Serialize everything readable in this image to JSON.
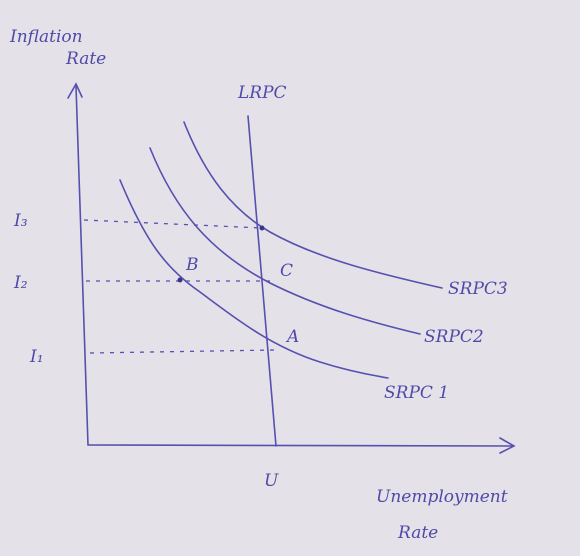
{
  "axes": {
    "y_label": [
      "Inflation",
      "Rate"
    ],
    "x_label": [
      "Unemployment",
      "Rate"
    ]
  },
  "lrpc": "LRPC",
  "levels": [
    "I₃",
    "I₂",
    "I₁"
  ],
  "natural_rate": "U",
  "points": [
    "B",
    "C",
    "A"
  ],
  "curves": [
    "SRPC3",
    "SRPC2",
    "SRPC 1"
  ]
}
